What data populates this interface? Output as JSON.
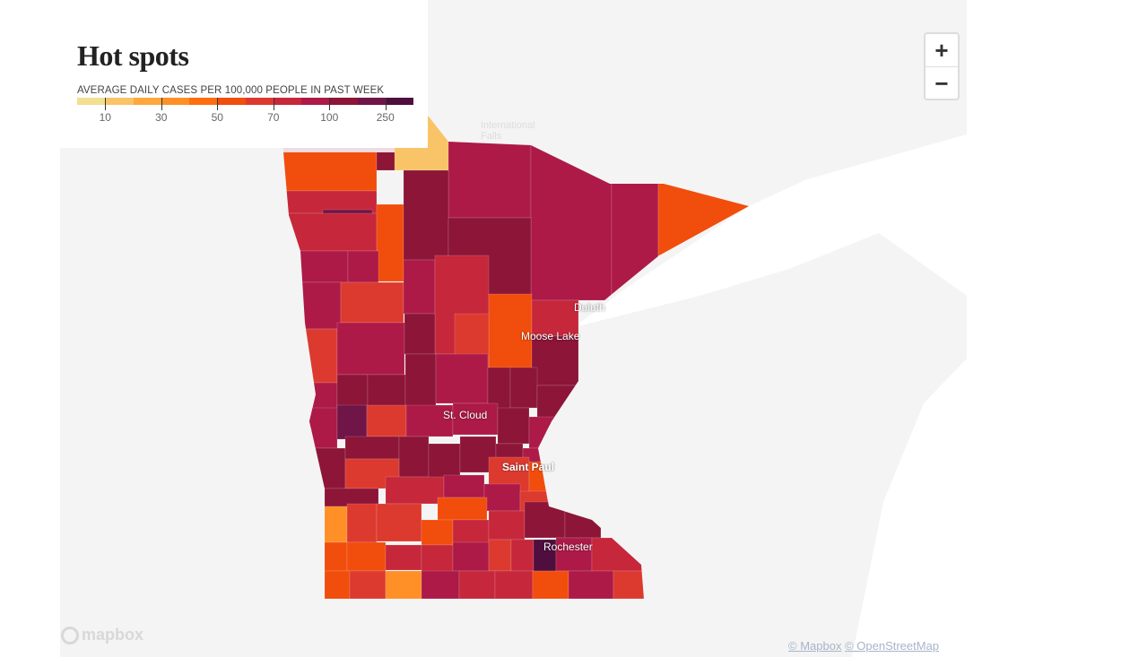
{
  "title": "Hot spots",
  "legend": {
    "label": "AVERAGE DAILY CASES PER 100,000 PEOPLE IN PAST WEEK",
    "colors": [
      "#f2df91",
      "#f9c467",
      "#ffa83d",
      "#ff8f27",
      "#ff6e0e",
      "#f14d0c",
      "#dc3a2f",
      "#c6273a",
      "#ad1a47",
      "#8c1538",
      "#6f1548",
      "#4f0e3e"
    ],
    "ticks": [
      "10",
      "30",
      "50",
      "70",
      "100",
      "250"
    ]
  },
  "cities": [
    "Duluth",
    "Moose Lake",
    "St. Cloud",
    "Saint Paul",
    "Rochester",
    "International Falls"
  ],
  "zoom_in": "+",
  "zoom_out": "−",
  "logo": "mapbox",
  "attribution": {
    "mapbox": "© Mapbox",
    "osm": "© OpenStreetMap"
  }
}
